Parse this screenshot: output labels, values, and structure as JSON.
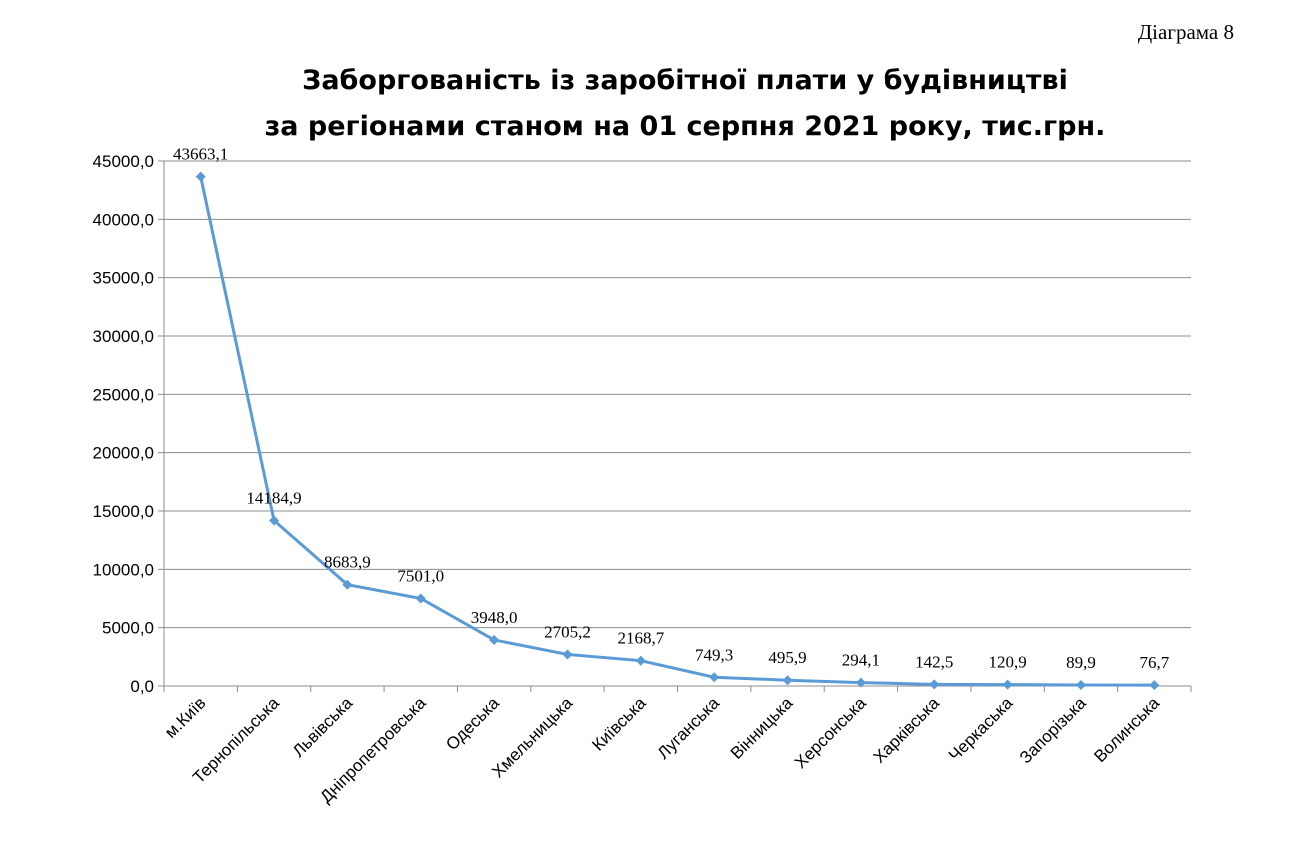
{
  "figure_label": "Діаграма 8",
  "chart_data": {
    "type": "line",
    "title": "Заборгованість із заробітної плати у будівництві",
    "subtitle": "за регіонами станом на 01 серпня 2021 року, тис.грн.",
    "xlabel": "",
    "ylabel": "",
    "ylim": [
      0,
      45000
    ],
    "yticks": [
      "0,0",
      "5000,0",
      "10000,0",
      "15000,0",
      "20000,0",
      "25000,0",
      "30000,0",
      "35000,0",
      "40000,0",
      "45000,0"
    ],
    "grid": true,
    "legend": "none",
    "categories": [
      "м.Київ",
      "Тернопільська",
      "Львівська",
      "Дніпропетровська",
      "Одеська",
      "Хмельницька",
      "Київська",
      "Луганська",
      "Вінницька",
      "Херсонська",
      "Харківська",
      "Черкаська",
      "Запорізька",
      "Волинська"
    ],
    "values": [
      43663.1,
      14184.9,
      8683.9,
      7501.0,
      3948.0,
      2705.2,
      2168.7,
      749.3,
      495.9,
      294.1,
      142.5,
      120.9,
      89.9,
      76.7
    ],
    "data_labels": [
      "43663,1",
      "14184,9",
      "8683,9",
      "7501,0",
      "3948,0",
      "2705,2",
      "2168,7",
      "749,3",
      "495,9",
      "294,1",
      "142,5",
      "120,9",
      "89,9",
      "76,7"
    ],
    "series_color": "#5b9bd5"
  }
}
